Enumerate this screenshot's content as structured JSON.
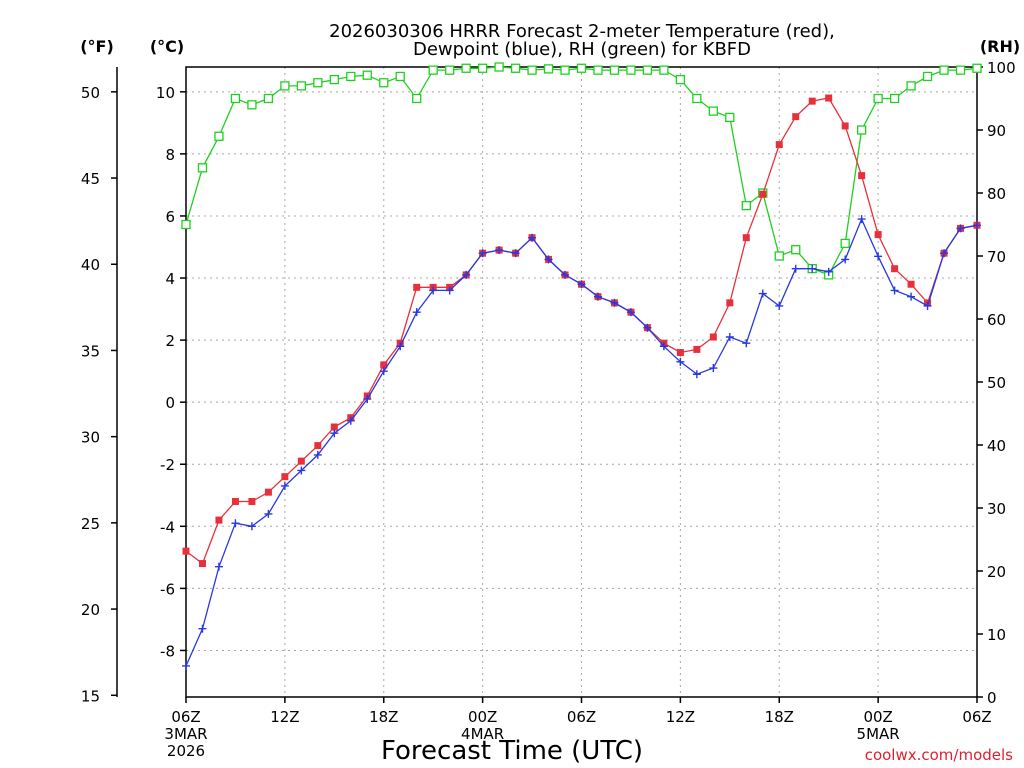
{
  "chart_data": {
    "type": "line",
    "title_line1": "2026030306 HRRR Forecast 2-meter Temperature (red),",
    "title_line2": "Dewpoint (blue), RH (green) for KBFD",
    "xlabel": "Forecast Time (UTC)",
    "credit": "coolwx.com/models",
    "units": {
      "fahrenheit": "(°F)",
      "celsius": "(°C)",
      "rh": "(RH)"
    },
    "x_range_hours": [
      0,
      48
    ],
    "x_ticks": [
      {
        "hour": 0,
        "label": "06Z",
        "date": "3MAR",
        "year": "2026"
      },
      {
        "hour": 6,
        "label": "12Z"
      },
      {
        "hour": 12,
        "label": "18Z"
      },
      {
        "hour": 18,
        "label": "00Z",
        "date": "4MAR"
      },
      {
        "hour": 24,
        "label": "06Z"
      },
      {
        "hour": 30,
        "label": "12Z"
      },
      {
        "hour": 36,
        "label": "18Z"
      },
      {
        "hour": 42,
        "label": "00Z",
        "date": "5MAR"
      },
      {
        "hour": 48,
        "label": "06Z"
      }
    ],
    "celsius_ticks": [
      "-8",
      "-6",
      "-4",
      "-2",
      "0",
      "2",
      "4",
      "6",
      "8",
      "10"
    ],
    "fahrenheit_ticks": [
      "15",
      "20",
      "25",
      "30",
      "35",
      "40",
      "45",
      "50"
    ],
    "rh_ticks": [
      "0",
      "10",
      "20",
      "30",
      "40",
      "50",
      "60",
      "70",
      "80",
      "90",
      "100"
    ],
    "celsius_range": [
      -9.5,
      10.8
    ],
    "rh_range": [
      0,
      100
    ],
    "series": [
      {
        "name": "Temperature",
        "unit": "C",
        "color": "#e8303a",
        "marker": "filled-square",
        "values": [
          -4.8,
          -5.2,
          -3.8,
          -3.2,
          -3.2,
          -2.9,
          -2.4,
          -1.9,
          -1.4,
          -0.8,
          -0.5,
          0.2,
          1.2,
          1.9,
          3.7,
          3.7,
          3.7,
          4.1,
          4.8,
          4.9,
          4.8,
          5.3,
          4.6,
          4.1,
          3.8,
          3.4,
          3.2,
          2.9,
          2.4,
          1.9,
          1.6,
          1.7,
          2.1,
          3.2,
          5.3,
          6.7,
          8.3,
          9.2,
          9.7,
          9.8,
          8.9,
          7.3,
          5.4,
          4.3,
          3.8,
          3.2,
          4.8,
          5.6,
          5.7
        ]
      },
      {
        "name": "Dewpoint",
        "unit": "C",
        "color": "#2838e0",
        "marker": "plus",
        "values": [
          -8.5,
          -7.3,
          -5.3,
          -3.9,
          -4.0,
          -3.6,
          -2.7,
          -2.2,
          -1.7,
          -1.0,
          -0.6,
          0.1,
          1.0,
          1.8,
          2.9,
          3.6,
          3.6,
          4.1,
          4.8,
          4.9,
          4.8,
          5.3,
          4.6,
          4.1,
          3.8,
          3.4,
          3.2,
          2.9,
          2.4,
          1.8,
          1.3,
          0.9,
          1.1,
          2.1,
          1.9,
          3.5,
          3.1,
          4.3,
          4.3,
          4.2,
          4.6,
          5.9,
          4.7,
          3.6,
          3.4,
          3.1,
          4.8,
          5.6,
          5.7
        ]
      },
      {
        "name": "RH",
        "unit": "%",
        "color": "#20d020",
        "marker": "open-square",
        "values": [
          75,
          84,
          89,
          95,
          94,
          95,
          97,
          97,
          97.5,
          98,
          98.5,
          98.7,
          97.5,
          98.5,
          95,
          99.5,
          99.5,
          99.8,
          99.8,
          100,
          99.8,
          99.5,
          99.7,
          99.5,
          99.8,
          99.5,
          99.5,
          99.5,
          99.5,
          99.5,
          98,
          95,
          93,
          92,
          78,
          80,
          70,
          71,
          68,
          67,
          72,
          90,
          95,
          95,
          97,
          98.5,
          99.5,
          99.5,
          99.8
        ]
      }
    ]
  }
}
